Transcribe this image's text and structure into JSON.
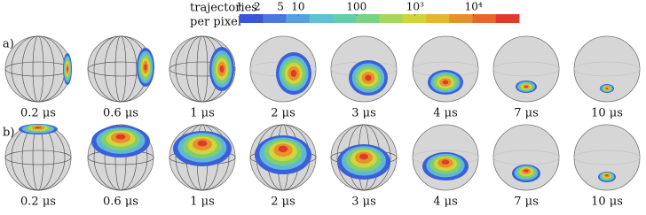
{
  "colorbar": {
    "title": [
      "trajectories",
      "per pixel"
    ],
    "scale": "log",
    "lim": [
      1,
      60000
    ],
    "ticks": [
      1,
      2,
      5,
      10,
      100,
      {
        "value": 1000,
        "label": "10³"
      },
      {
        "value": 10000,
        "label": "10⁴"
      }
    ],
    "colors": [
      "#3a55d6",
      "#4a78e0",
      "#55a2e3",
      "#5ec2d6",
      "#62cfa8",
      "#78d480",
      "#a6d65a",
      "#d2d43c",
      "#e8b434",
      "#e8902c",
      "#e8662a",
      "#e23a2a"
    ]
  },
  "rows": [
    {
      "label": "a)",
      "times": [
        "0.2 μs",
        "0.6 μs",
        "1 μs",
        "2 μs",
        "3 μs",
        "4 μs",
        "7 μs",
        "10 μs"
      ]
    },
    {
      "label": "b)",
      "times": [
        "0.2 μs",
        "0.6 μs",
        "1 μs",
        "2 μs",
        "3 μs",
        "4 μs",
        "7 μs",
        "10 μs"
      ]
    }
  ]
}
